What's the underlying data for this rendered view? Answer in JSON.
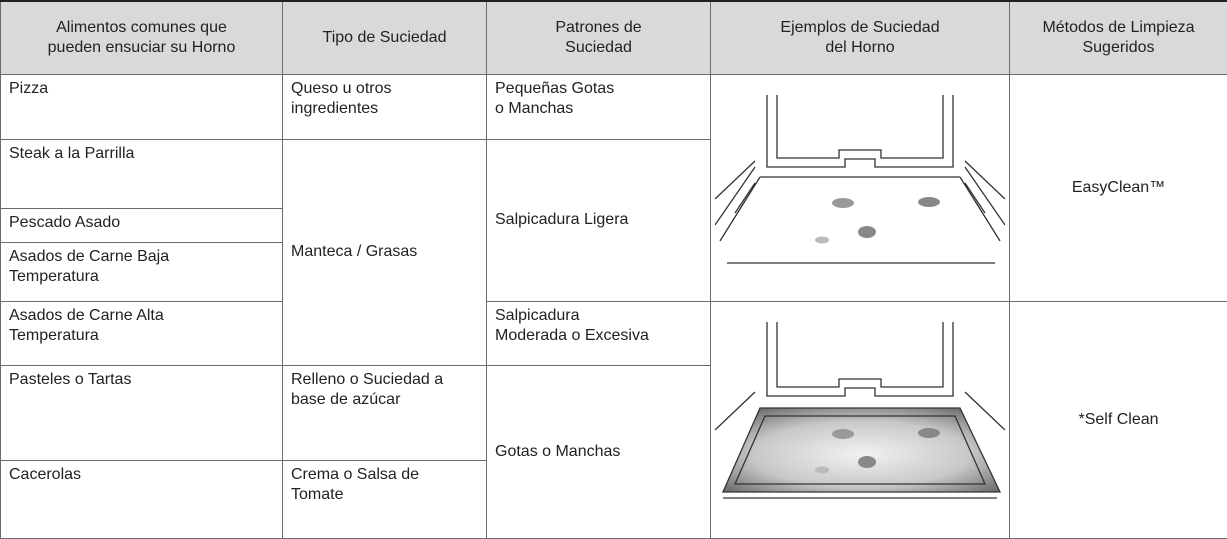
{
  "table": {
    "header": [
      "Alimentos comunes que\npueden ensuciar su Horno",
      "Tipo de Suciedad",
      "Patrones de\nSuciedad",
      "Ejemplos de Suciedad\ndel Horno",
      "Métodos de Limpieza\nSugeridos"
    ],
    "foods": [
      "Pizza",
      "Steak a la Parrilla",
      "Pescado Asado",
      "Asados de Carne Baja\nTemperatura",
      "Asados de Carne Alta\nTemperatura",
      "Pasteles o Tartas",
      "Cacerolas"
    ],
    "soil_types": [
      "Queso u otros\ningredientes",
      "Manteca / Grasas",
      "Relleno o Suciedad a\nbase de azúcar",
      "Crema o Salsa de\nTomate"
    ],
    "patterns": [
      "Pequeñas Gotas\no Manchas",
      "Salpicadura Ligera",
      "Salpicadura\nModerada o Excesiva",
      "Gotas o Manchas"
    ],
    "methods": [
      "EasyClean™",
      "*Self Clean"
    ]
  }
}
